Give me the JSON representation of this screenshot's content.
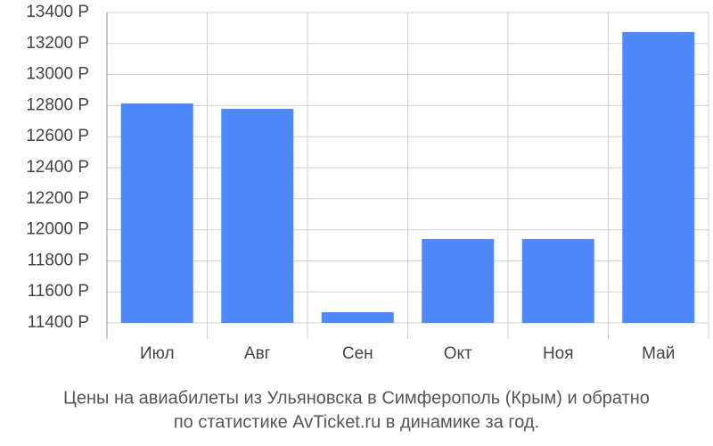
{
  "chart_data": {
    "type": "bar",
    "caption": [
      "Цены на авиабилеты из Ульяновска в Симферополь (Крым) и обратно",
      "по статистике AvTicket.ru в динамике за год."
    ],
    "categories": [
      "Июл",
      "Авг",
      "Сен",
      "Окт",
      "Ноя",
      "Май"
    ],
    "values": [
      12814,
      12779,
      11469,
      11940,
      11940,
      13274
    ],
    "color": "#4e89fb",
    "ylim": [
      11400,
      13400
    ],
    "yticks": [
      {
        "value": 11400,
        "label": "11400 Р"
      },
      {
        "value": 11600,
        "label": "11600 Р"
      },
      {
        "value": 11800,
        "label": "11800 Р"
      },
      {
        "value": 12000,
        "label": "12000 Р"
      },
      {
        "value": 12200,
        "label": "12200 Р"
      },
      {
        "value": 12400,
        "label": "12400 Р"
      },
      {
        "value": 12600,
        "label": "12600 Р"
      },
      {
        "value": 12800,
        "label": "12800 Р"
      },
      {
        "value": 13000,
        "label": "13000 Р"
      },
      {
        "value": 13200,
        "label": "13200 Р"
      },
      {
        "value": 13400,
        "label": "13400 Р"
      }
    ],
    "grid": true
  }
}
